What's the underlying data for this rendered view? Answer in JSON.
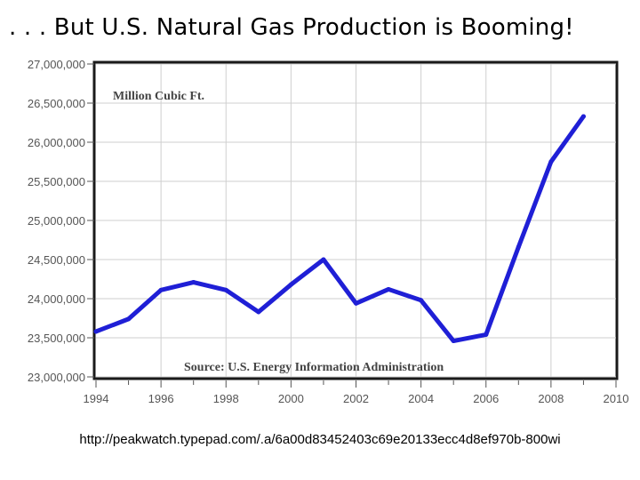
{
  "slide": {
    "title": ". . . But U.S. Natural Gas Production is Booming!",
    "source_url": "http://peakwatch.typepad.com/.a/6a00d83452403c69e20133ecc4d8ef970b-800wi"
  },
  "chart_data": {
    "type": "line",
    "title": "",
    "unit_label": "Million Cubic Ft.",
    "annotation": "Source: U.S. Energy Information Administration",
    "xlabel": "",
    "ylabel": "",
    "xlim": [
      1994,
      2010
    ],
    "ylim": [
      23000000,
      27000000
    ],
    "x_ticks": [
      1994,
      1996,
      1998,
      2000,
      2002,
      2004,
      2006,
      2008,
      2010
    ],
    "y_ticks": [
      23000000,
      23500000,
      24000000,
      24500000,
      25000000,
      25500000,
      26000000,
      26500000,
      27000000
    ],
    "y_tick_labels": [
      "23,000,000",
      "23,500,000",
      "24,000,000",
      "24,500,000",
      "25,000,000",
      "25,500,000",
      "26,000,000",
      "26,500,000",
      "27,000,000"
    ],
    "grid": true,
    "series": [
      {
        "color": "#1f1fd6",
        "x": [
          1994,
          1995,
          1996,
          1997,
          1998,
          1999,
          2000,
          2001,
          2002,
          2003,
          2004,
          2005,
          2006,
          2007,
          2008,
          2009
        ],
        "values": [
          23580000,
          23740000,
          24110000,
          24210000,
          24110000,
          23830000,
          24180000,
          24500000,
          23940000,
          24120000,
          23980000,
          23460000,
          23540000,
          24660000,
          25750000,
          26330000
        ]
      }
    ]
  }
}
